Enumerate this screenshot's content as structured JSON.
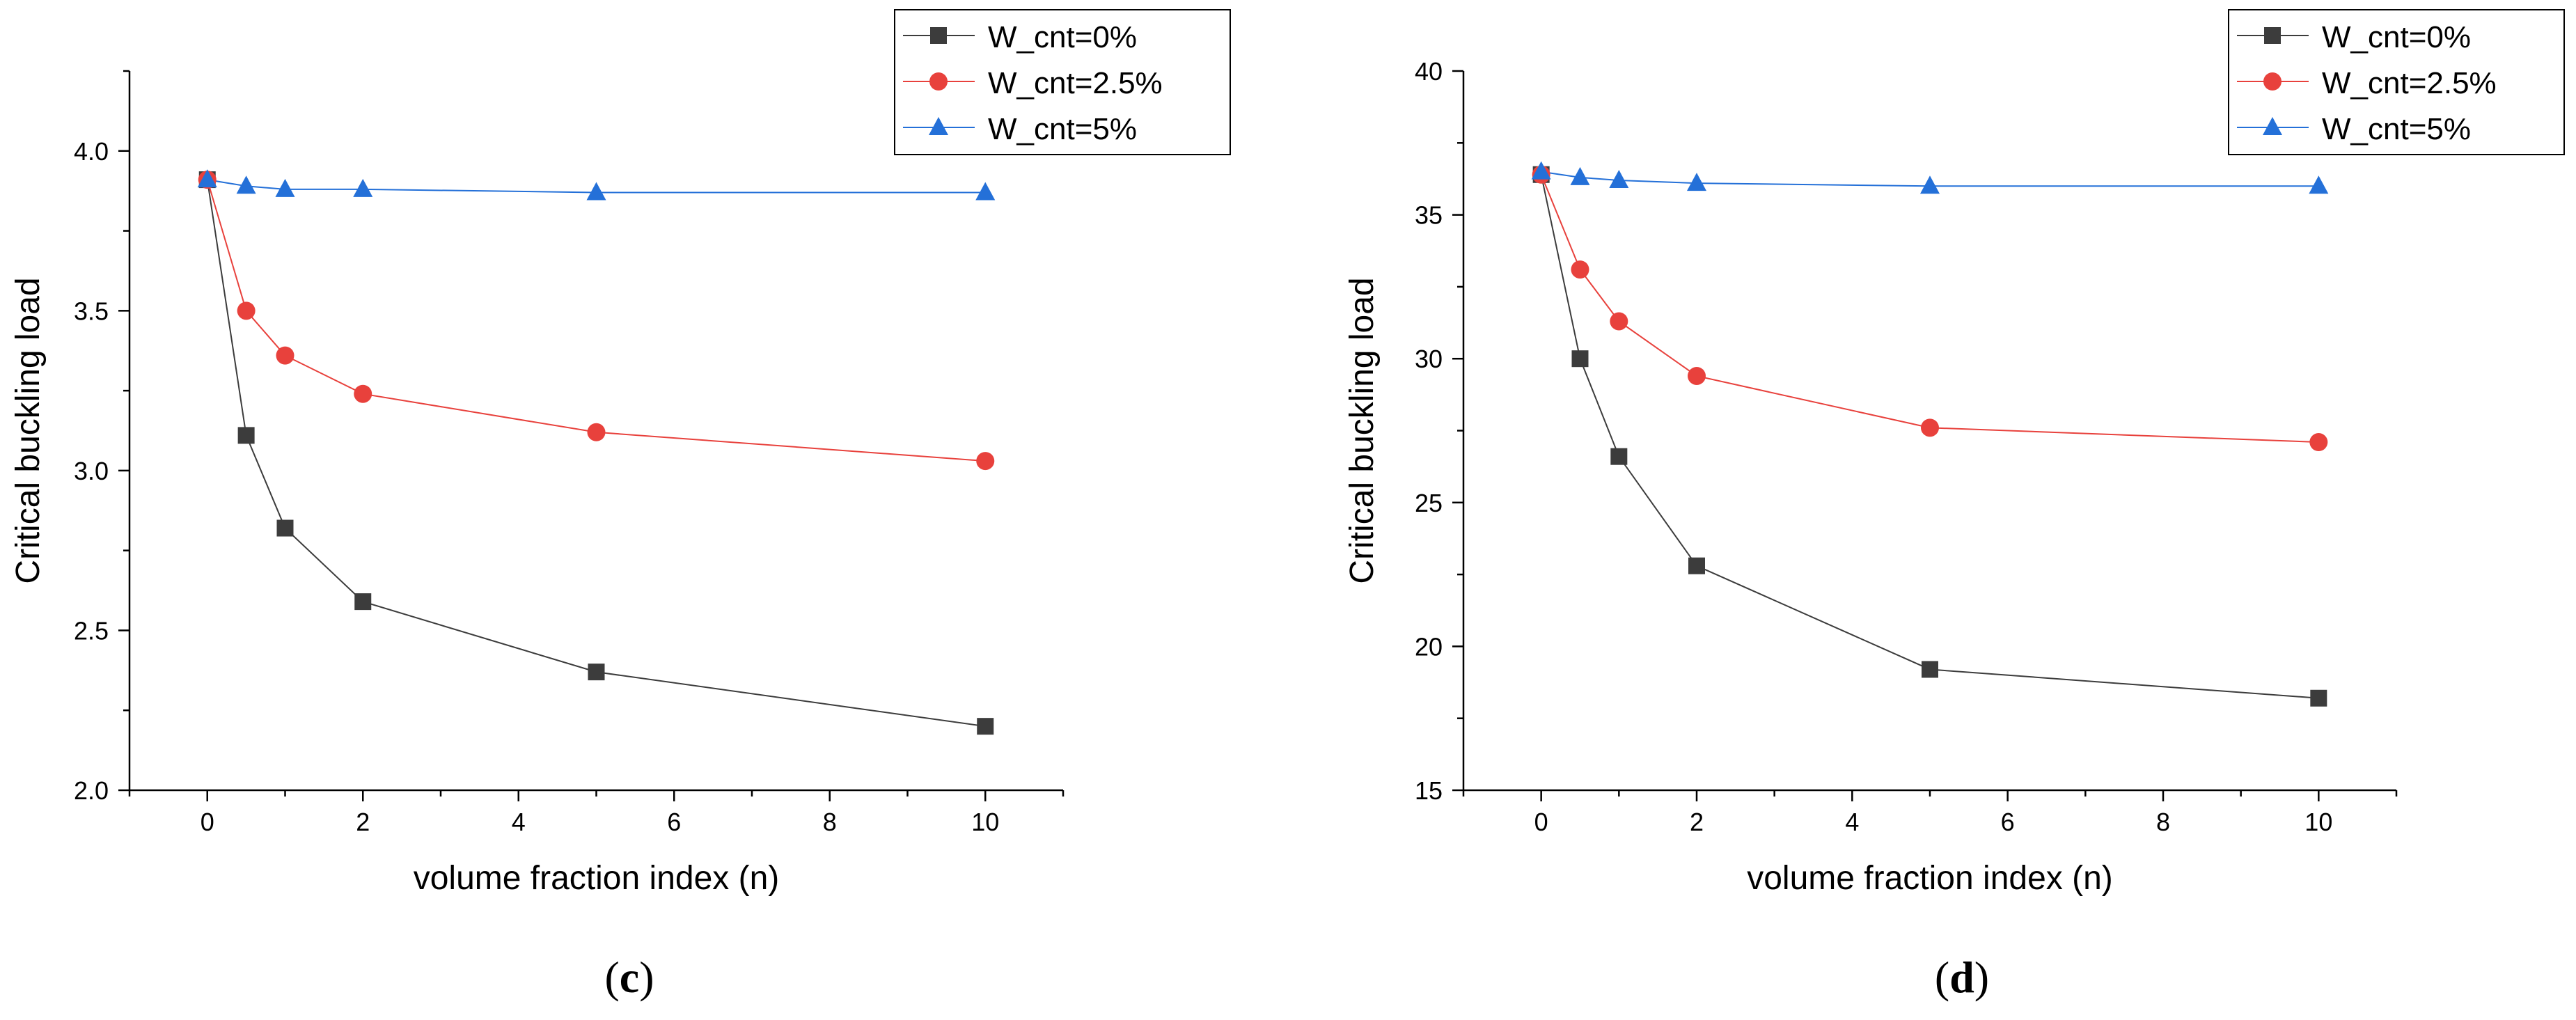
{
  "panels": [
    {
      "caption": "(c)",
      "chart_data": {
        "type": "line",
        "xlabel": "volume fraction index (n)",
        "ylabel": "Critical buckling load",
        "xlim": [
          -1,
          11
        ],
        "ylim": [
          2.0,
          4.25
        ],
        "xticks": [
          0,
          2,
          4,
          6,
          8,
          10
        ],
        "xtick_labels": [
          "0",
          "2",
          "4",
          "6",
          "8",
          "10"
        ],
        "yticks": [
          2.0,
          2.5,
          3.0,
          3.5,
          4.0
        ],
        "ytick_labels": [
          "2.0",
          "2.5",
          "3.0",
          "3.5",
          "4.0"
        ],
        "legend_position": "top-right",
        "grid": false,
        "x": [
          0,
          0.5,
          1,
          2,
          5,
          10
        ],
        "series": [
          {
            "name": "W_cnt=0%",
            "marker": "square",
            "color": "#3c3c3c",
            "values": [
              3.91,
              3.11,
              2.82,
              2.59,
              2.37,
              2.2
            ]
          },
          {
            "name": "W_cnt=2.5%",
            "marker": "circle",
            "color": "#e8413c",
            "values": [
              3.91,
              3.5,
              3.36,
              3.24,
              3.12,
              3.03
            ]
          },
          {
            "name": "W_cnt=5%",
            "marker": "triangle",
            "color": "#2470d8",
            "values": [
              3.91,
              3.89,
              3.88,
              3.88,
              3.87,
              3.87
            ]
          }
        ]
      }
    },
    {
      "caption": "(d)",
      "chart_data": {
        "type": "line",
        "xlabel": "volume fraction index (n)",
        "ylabel": "Critical buckling load",
        "xlim": [
          -1,
          11
        ],
        "ylim": [
          15,
          40
        ],
        "xticks": [
          0,
          2,
          4,
          6,
          8,
          10
        ],
        "xtick_labels": [
          "0",
          "2",
          "4",
          "6",
          "8",
          "10"
        ],
        "yticks": [
          15,
          20,
          25,
          30,
          35,
          40
        ],
        "ytick_labels": [
          "15",
          "20",
          "25",
          "30",
          "35",
          "40"
        ],
        "legend_position": "top-right",
        "grid": false,
        "x": [
          0,
          0.5,
          1,
          2,
          5,
          10
        ],
        "series": [
          {
            "name": "W_cnt=0%",
            "marker": "square",
            "color": "#3c3c3c",
            "values": [
              36.4,
              30.0,
              26.6,
              22.8,
              19.2,
              18.2
            ]
          },
          {
            "name": "W_cnt=2.5%",
            "marker": "circle",
            "color": "#e8413c",
            "values": [
              36.4,
              33.1,
              31.3,
              29.4,
              27.6,
              27.1
            ]
          },
          {
            "name": "W_cnt=5%",
            "marker": "triangle",
            "color": "#2470d8",
            "values": [
              36.5,
              36.3,
              36.2,
              36.1,
              36.0,
              36.0
            ]
          }
        ]
      }
    }
  ]
}
